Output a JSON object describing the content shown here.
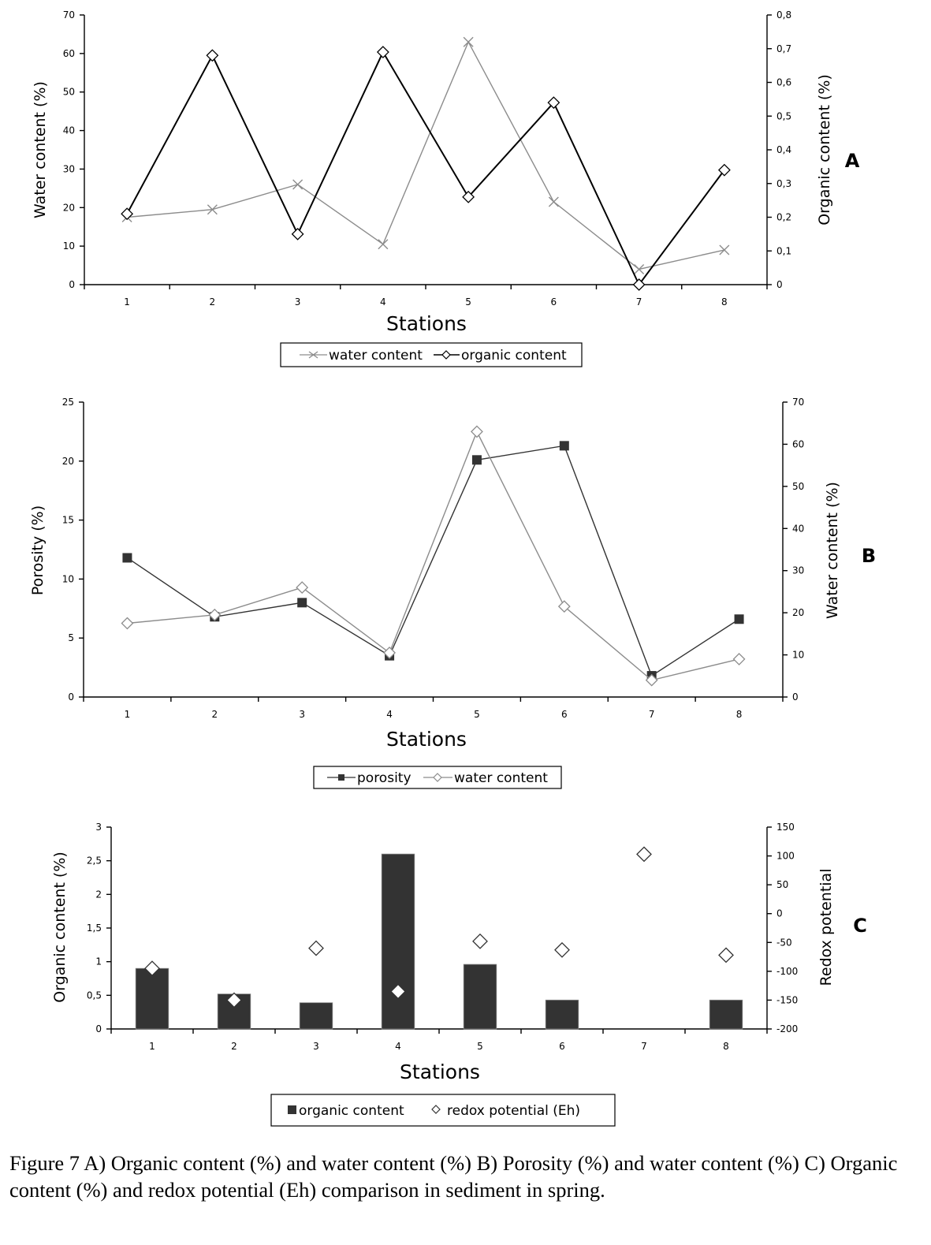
{
  "chart_data": [
    {
      "type": "line",
      "panel_label": "A",
      "categories": [
        "1",
        "2",
        "3",
        "4",
        "5",
        "6",
        "7",
        "8"
      ],
      "xlabel": "Stations",
      "ylabel": "Water content (%)",
      "y2label": "Organic content (%)",
      "ylim": [
        0,
        70
      ],
      "yticks": [
        "0",
        "10",
        "20",
        "30",
        "40",
        "50",
        "60",
        "70"
      ],
      "y2lim": [
        0,
        0.8
      ],
      "y2ticks": [
        "0",
        "0,1",
        "0,2",
        "0,3",
        "0,4",
        "0,5",
        "0,6",
        "0,7",
        "0,8"
      ],
      "series": [
        {
          "name": "water content",
          "axis": "left",
          "marker": "x",
          "color": "#8c8c8c",
          "values": [
            17.5,
            19.5,
            26,
            10.5,
            63,
            21.5,
            4,
            9
          ]
        },
        {
          "name": "organic content",
          "axis": "right",
          "marker": "diamond",
          "color": "#000000",
          "values": [
            0.21,
            0.68,
            0.15,
            0.69,
            0.26,
            0.54,
            0.0,
            0.34
          ]
        }
      ],
      "legend": "bottom"
    },
    {
      "type": "line",
      "panel_label": "B",
      "categories": [
        "1",
        "2",
        "3",
        "4",
        "5",
        "6",
        "7",
        "8"
      ],
      "xlabel": "Stations",
      "ylabel": "Porosity (%)",
      "y2label": "Water content (%)",
      "ylim": [
        0,
        25
      ],
      "yticks": [
        "0",
        "5",
        "10",
        "15",
        "20",
        "25"
      ],
      "y2lim": [
        0,
        70
      ],
      "y2ticks": [
        "0",
        "10",
        "20",
        "30",
        "40",
        "50",
        "60",
        "70"
      ],
      "series": [
        {
          "name": "porosity",
          "axis": "left",
          "marker": "square",
          "color": "#333333",
          "values": [
            11.8,
            6.8,
            8.0,
            3.5,
            20.1,
            21.3,
            1.8,
            6.6
          ]
        },
        {
          "name": "water content",
          "axis": "right",
          "marker": "diamond",
          "color": "#8c8c8c",
          "values": [
            17.5,
            19.5,
            26,
            10.5,
            63,
            21.5,
            4,
            9
          ]
        }
      ],
      "legend": "bottom"
    },
    {
      "type": "bar",
      "panel_label": "C",
      "categories": [
        "1",
        "2",
        "3",
        "4",
        "5",
        "6",
        "7",
        "8"
      ],
      "xlabel": "Stations",
      "ylabel": "Organic content (%)",
      "y2label": "Redox potential",
      "ylim": [
        0,
        3
      ],
      "yticks": [
        "0",
        "0,5",
        "1",
        "1,5",
        "2",
        "2,5",
        "3"
      ],
      "y2lim": [
        -200,
        150
      ],
      "y2ticks": [
        "-200",
        "-150",
        "-100",
        "-50",
        "0",
        "50",
        "100",
        "150"
      ],
      "series": [
        {
          "name": "organic content",
          "axis": "left",
          "kind": "bar",
          "color": "#333333",
          "values": [
            0.9,
            0.52,
            0.39,
            2.6,
            0.96,
            0.43,
            0,
            0.43
          ]
        },
        {
          "name": "redox potential (Eh)",
          "axis": "right",
          "kind": "marker",
          "marker": "diamond",
          "values": [
            -95,
            -150,
            -60,
            -135,
            -48,
            -63,
            103,
            -72
          ]
        }
      ],
      "legend": "bottom"
    }
  ],
  "caption": "Figure 7 A) Organic content (%) and water content (%) B) Porosity (%) and water content (%) C) Organic content (%) and redox potential (Eh) comparison in sediment in spring."
}
